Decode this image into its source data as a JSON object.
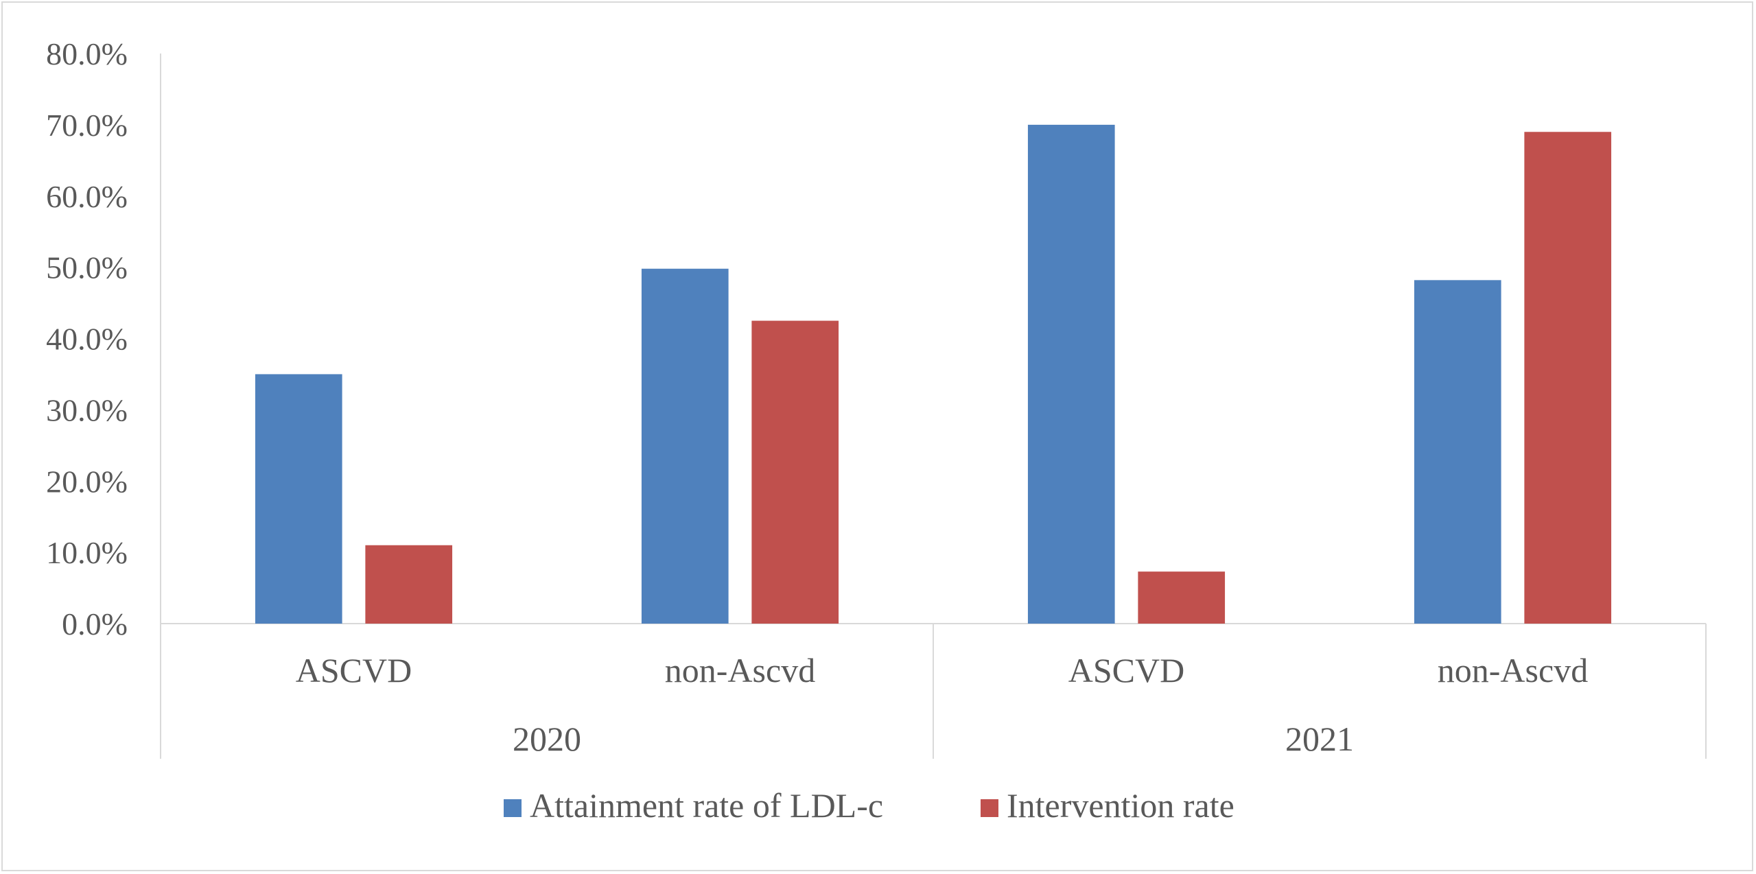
{
  "chart_data": {
    "type": "bar",
    "title": "",
    "xlabel": "",
    "ylabel": "",
    "ylim": [
      0,
      80
    ],
    "y_ticks": [
      0,
      10,
      20,
      30,
      40,
      50,
      60,
      70,
      80
    ],
    "y_tick_labels": [
      "0.0%",
      "10.0%",
      "20.0%",
      "30.0%",
      "40.0%",
      "50.0%",
      "60.0%",
      "70.0%",
      "80.0%"
    ],
    "groups": [
      {
        "label": "2020",
        "categories": [
          "ASCVD",
          "non-Ascvd"
        ]
      },
      {
        "label": "2021",
        "categories": [
          "ASCVD",
          "non-Ascvd"
        ]
      }
    ],
    "categories": [
      "ASCVD",
      "non-Ascvd",
      "ASCVD",
      "non-Ascvd"
    ],
    "series": [
      {
        "name": "Attainment rate of LDL-c",
        "color": "#4f81bd",
        "values": [
          35.0,
          49.8,
          70.0,
          48.2
        ]
      },
      {
        "name": "Intervention rate",
        "color": "#c0504d",
        "values": [
          11.0,
          42.5,
          7.3,
          69.0
        ]
      }
    ],
    "grid": false,
    "legend_position": "bottom"
  }
}
